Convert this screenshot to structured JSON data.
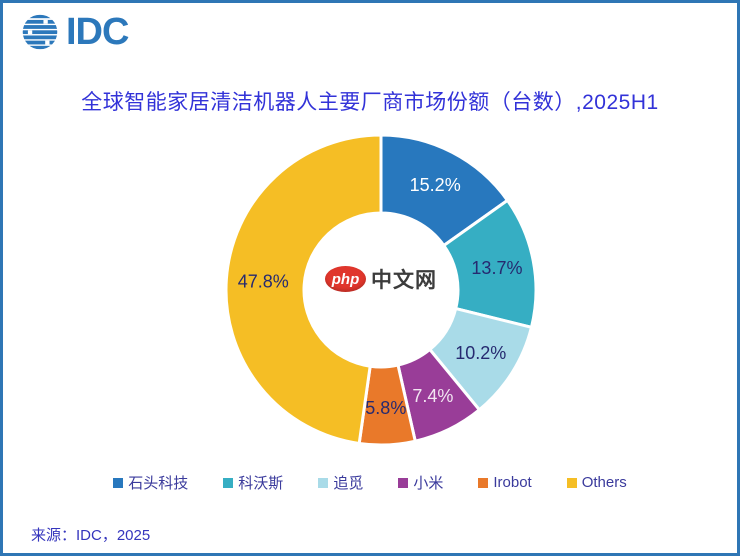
{
  "window": {
    "border_color": "#2f76b5",
    "background": "#ffffff"
  },
  "header": {
    "logo_text": "IDC",
    "logo_color": "#2c78bb"
  },
  "title": "全球智能家居清洁机器人主要厂商市场份额（台数）,2025H1",
  "watermark": {
    "badge_text": "php",
    "badge_color": "#e0362c",
    "site_text": "中文网",
    "site_text_color": "#3c3c3c"
  },
  "source": "来源：IDC，2025",
  "chart_data": {
    "type": "pie",
    "subtype": "donut",
    "title": "全球智能家居清洁机器人主要厂商市场份额（台数）,2025H1",
    "unit": "percent",
    "start_angle_deg": 0,
    "direction": "clockwise",
    "legend_position": "bottom",
    "series": [
      {
        "name": "石头科技",
        "value": 15.2,
        "label": "15.2%",
        "color": "#2878be",
        "label_color": "#ffffff"
      },
      {
        "name": "科沃斯",
        "value": 13.7,
        "label": "13.7%",
        "color": "#36aec3",
        "label_color": "#262a70"
      },
      {
        "name": "追觅",
        "value": 10.2,
        "label": "10.2%",
        "color": "#a9dbe8",
        "label_color": "#262a70"
      },
      {
        "name": "小米",
        "value": 7.4,
        "label": "7.4%",
        "color": "#993d98",
        "label_color": "#f2e6f2"
      },
      {
        "name": "Irobot",
        "value": 5.8,
        "label": "5.8%",
        "color": "#e9792a",
        "label_color": "#262a70"
      },
      {
        "name": "Others",
        "value": 47.8,
        "label": "47.8%",
        "color": "#f5be25",
        "label_color": "#262a70"
      }
    ]
  }
}
